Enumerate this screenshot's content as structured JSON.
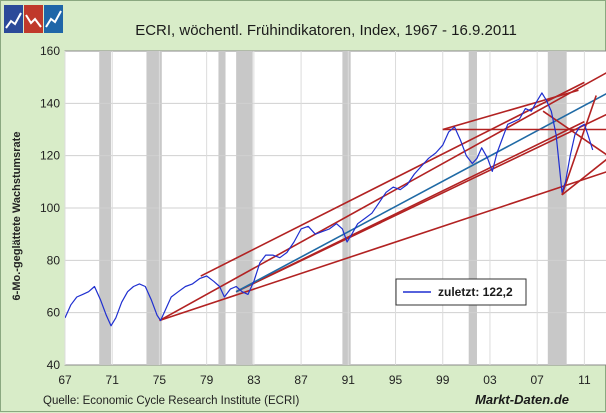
{
  "chart_data": {
    "type": "line",
    "title": "ECRI, wöchentl. Frühindikatoren, Index, 1967 - 16.9.2011",
    "ylabel": "6-Mo.-geglättete Wachstumsrate",
    "xlabel": "",
    "xlim": [
      1967,
      2013
    ],
    "ylim": [
      40,
      160
    ],
    "x_ticks": [
      "67",
      "71",
      "75",
      "79",
      "83",
      "87",
      "91",
      "95",
      "99",
      "03",
      "07",
      "11"
    ],
    "x_tick_values": [
      1967,
      1971,
      1975,
      1979,
      1983,
      1987,
      1991,
      1995,
      1999,
      2003,
      2007,
      2011
    ],
    "y_ticks": [
      "40",
      "60",
      "80",
      "100",
      "120",
      "140",
      "160"
    ],
    "y_tick_values": [
      40,
      60,
      80,
      100,
      120,
      140,
      160
    ],
    "grid": true,
    "legend": {
      "position": "lower-right",
      "entries": [
        "zuletzt: 122,2"
      ]
    },
    "series": [
      {
        "color": "#1f2fd0",
        "points": [
          [
            1967.0,
            58
          ],
          [
            1967.5,
            63
          ],
          [
            1968.0,
            66
          ],
          [
            1968.5,
            67
          ],
          [
            1969.0,
            68
          ],
          [
            1969.5,
            70
          ],
          [
            1970.0,
            65
          ],
          [
            1970.5,
            59
          ],
          [
            1970.9,
            55
          ],
          [
            1971.3,
            58
          ],
          [
            1971.8,
            64
          ],
          [
            1972.3,
            68
          ],
          [
            1972.8,
            70
          ],
          [
            1973.3,
            71
          ],
          [
            1973.8,
            70
          ],
          [
            1974.3,
            65
          ],
          [
            1974.8,
            59
          ],
          [
            1975.1,
            57
          ],
          [
            1975.5,
            61
          ],
          [
            1976.0,
            66
          ],
          [
            1976.6,
            68
          ],
          [
            1977.2,
            70
          ],
          [
            1977.8,
            71
          ],
          [
            1978.4,
            73
          ],
          [
            1979.0,
            74
          ],
          [
            1979.6,
            72
          ],
          [
            1980.1,
            70
          ],
          [
            1980.5,
            66
          ],
          [
            1981.0,
            69
          ],
          [
            1981.5,
            70
          ],
          [
            1982.0,
            68
          ],
          [
            1982.5,
            67
          ],
          [
            1983.0,
            72
          ],
          [
            1983.5,
            79
          ],
          [
            1984.0,
            82
          ],
          [
            1984.6,
            82
          ],
          [
            1985.2,
            81
          ],
          [
            1985.8,
            83
          ],
          [
            1986.4,
            87
          ],
          [
            1987.0,
            92
          ],
          [
            1987.6,
            93
          ],
          [
            1988.2,
            90
          ],
          [
            1988.8,
            91
          ],
          [
            1989.4,
            92
          ],
          [
            1990.0,
            94
          ],
          [
            1990.5,
            92
          ],
          [
            1990.9,
            87
          ],
          [
            1991.3,
            90
          ],
          [
            1991.8,
            94
          ],
          [
            1992.4,
            96
          ],
          [
            1993.0,
            98
          ],
          [
            1993.6,
            102
          ],
          [
            1994.2,
            106
          ],
          [
            1994.8,
            108
          ],
          [
            1995.4,
            107
          ],
          [
            1996.0,
            109
          ],
          [
            1996.6,
            113
          ],
          [
            1997.2,
            116
          ],
          [
            1997.8,
            119
          ],
          [
            1998.4,
            121
          ],
          [
            1999.0,
            124
          ],
          [
            1999.5,
            129
          ],
          [
            2000.0,
            131
          ],
          [
            2000.5,
            126
          ],
          [
            2001.0,
            120
          ],
          [
            2001.5,
            117
          ],
          [
            2001.9,
            119
          ],
          [
            2002.3,
            123
          ],
          [
            2002.8,
            119
          ],
          [
            2003.2,
            114
          ],
          [
            2003.6,
            121
          ],
          [
            2004.0,
            126
          ],
          [
            2004.5,
            132
          ],
          [
            2005.0,
            133
          ],
          [
            2005.5,
            134
          ],
          [
            2006.0,
            138
          ],
          [
            2006.5,
            137
          ],
          [
            2007.0,
            141
          ],
          [
            2007.4,
            144
          ],
          [
            2007.8,
            141
          ],
          [
            2008.2,
            137
          ],
          [
            2008.6,
            128
          ],
          [
            2008.9,
            115
          ],
          [
            2009.1,
            106
          ],
          [
            2009.4,
            110
          ],
          [
            2009.8,
            120
          ],
          [
            2010.2,
            128
          ],
          [
            2010.6,
            131
          ],
          [
            2011.0,
            132
          ],
          [
            2011.3,
            128
          ],
          [
            2011.7,
            122.2
          ]
        ]
      }
    ],
    "recession_bands": [
      [
        1969.9,
        1970.9
      ],
      [
        1973.9,
        1975.2
      ],
      [
        1980.0,
        1980.6
      ],
      [
        1981.5,
        1982.9
      ],
      [
        1990.5,
        1991.2
      ],
      [
        2001.2,
        2001.9
      ],
      [
        2007.9,
        2009.5
      ]
    ],
    "trend_lines": [
      {
        "color": "#b22222",
        "points": [
          [
            1975.0,
            57
          ],
          [
            2013.0,
            152
          ]
        ]
      },
      {
        "color": "#b22222",
        "points": [
          [
            1975.0,
            57
          ],
          [
            2013.0,
            114
          ]
        ]
      },
      {
        "color": "#b22222",
        "points": [
          [
            1978.5,
            74
          ],
          [
            2011.0,
            148
          ]
        ]
      },
      {
        "color": "#b22222",
        "points": [
          [
            1981.5,
            68
          ],
          [
            2013.0,
            136
          ]
        ]
      },
      {
        "color": "#b22222",
        "points": [
          [
            1981.5,
            68
          ],
          [
            2011.0,
            133
          ]
        ]
      },
      {
        "color": "#1f6aa5",
        "points": [
          [
            1981.5,
            68
          ],
          [
            2013.0,
            144
          ]
        ]
      },
      {
        "color": "#b22222",
        "points": [
          [
            1999.0,
            130
          ],
          [
            2013.0,
            130
          ]
        ]
      },
      {
        "color": "#b22222",
        "points": [
          [
            1999.0,
            130
          ],
          [
            2010.5,
            145
          ]
        ]
      },
      {
        "color": "#b22222",
        "points": [
          [
            2007.5,
            137
          ],
          [
            2013.0,
            120
          ]
        ]
      },
      {
        "color": "#b22222",
        "points": [
          [
            2009.1,
            105
          ],
          [
            2012.0,
            143
          ]
        ]
      },
      {
        "color": "#b22222",
        "points": [
          [
            2009.1,
            105
          ],
          [
            2013.0,
            119
          ]
        ]
      }
    ]
  },
  "source_text": "Quelle: Economic Cycle Research Institute (ECRI)",
  "brand_text": "Markt-Daten.de",
  "logo": {
    "colors": [
      "#2b4a99",
      "#c0392b",
      "#1f66a8"
    ]
  }
}
